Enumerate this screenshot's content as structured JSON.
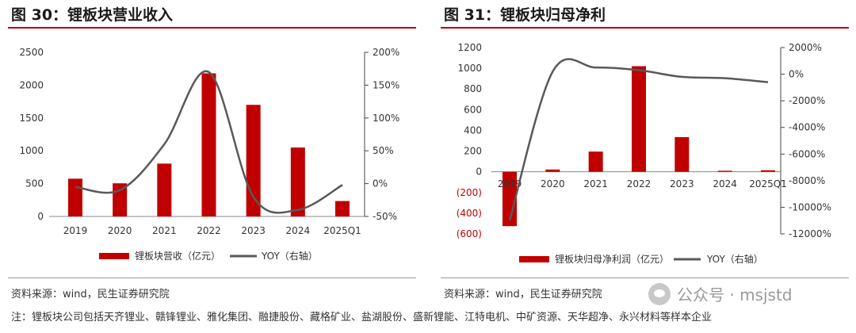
{
  "chart_data": [
    {
      "type": "bar",
      "title": "图 30：锂板块营业收入",
      "categories": [
        "2019",
        "2020",
        "2021",
        "2022",
        "2023",
        "2024",
        "2025Q1"
      ],
      "series": [
        {
          "name": "锂板块营收（亿元）",
          "kind": "bar",
          "axis": "left",
          "color": "#c00000",
          "values": [
            575,
            505,
            805,
            2180,
            1700,
            1050,
            235
          ]
        },
        {
          "name": "YOY（右轴）",
          "kind": "line",
          "axis": "right",
          "color": "#595959",
          "values": [
            -5,
            -10,
            60,
            170,
            -20,
            -40,
            -2
          ]
        }
      ],
      "ylim_left": [
        0,
        2500
      ],
      "yticks_left": [
        "0",
        "500",
        "1000",
        "1500",
        "2000",
        "2500"
      ],
      "ylim_right": [
        -50,
        200
      ],
      "yticks_right": [
        "-50%",
        "0%",
        "50%",
        "100%",
        "150%",
        "200%"
      ],
      "legend": "bottom",
      "source": "资料来源：wind，民生证券研究院"
    },
    {
      "type": "bar",
      "title": "图 31：锂板块归母净利",
      "categories": [
        "2019",
        "2020",
        "2021",
        "2022",
        "2023",
        "2024",
        "2025Q1"
      ],
      "series": [
        {
          "name": "锂板块归母净利润（亿元）",
          "kind": "bar",
          "axis": "left",
          "color": "#c00000",
          "values": [
            -525,
            22,
            195,
            1020,
            335,
            10,
            15
          ]
        },
        {
          "name": "YOY（右轴）",
          "kind": "line",
          "axis": "right",
          "color": "#595959",
          "values": [
            -11000,
            200,
            500,
            300,
            -200,
            -300,
            -600
          ]
        }
      ],
      "ylim_left": [
        -600,
        1200
      ],
      "yticks_left": [
        "(600)",
        "(400)",
        "(200)",
        "0",
        "200",
        "400",
        "600",
        "800",
        "1000",
        "1200"
      ],
      "ylim_right": [
        -12000,
        2000
      ],
      "yticks_right": [
        "-12000%",
        "-10000%",
        "-8000%",
        "-6000%",
        "-4000%",
        "-2000%",
        "0%",
        "2000%"
      ],
      "legend": "bottom",
      "source": "资料来源：wind，民生证券研究院"
    }
  ],
  "note": "注：锂板块公司包括天齐锂业、赣锋锂业、雅化集团、融捷股份、藏格矿业、盐湖股份、盛新锂能、江特电机、中矿资源、天华超净、永兴材料等样本企业",
  "watermark": "公众号 · msjstd"
}
